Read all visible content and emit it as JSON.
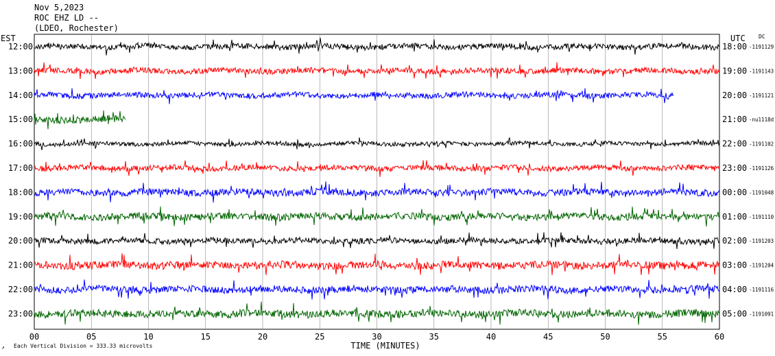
{
  "header": {
    "date": "Nov 5,2023",
    "station": "ROC EHZ LD --",
    "network": "(LDEO, Rochester)"
  },
  "left_axis_label": "EST",
  "right_axis_label": "UTC",
  "dc_label": "DC",
  "footer_note": "Each Vertical Division = 333.33 microvolts",
  "chart_data": {
    "type": "line",
    "subtype": "helicorder",
    "xlabel": "TIME (MINUTES)",
    "x_ticks": [
      "00",
      "05",
      "10",
      "15",
      "20",
      "25",
      "30",
      "35",
      "40",
      "45",
      "50",
      "55",
      "60"
    ],
    "xlim": [
      0,
      60
    ],
    "trace_colors": [
      "#000000",
      "#ff0000",
      "#0000ff",
      "#006400"
    ],
    "rows": [
      {
        "est": "12:00",
        "utc": "18:00",
        "dc": "-1191129",
        "color": "#000000",
        "end_min": 60,
        "amp": 0.8
      },
      {
        "est": "13:00",
        "utc": "19:00",
        "dc": "-1191143",
        "color": "#ff0000",
        "end_min": 60,
        "amp": 0.8
      },
      {
        "est": "14:00",
        "utc": "20:00",
        "dc": "-1191121",
        "color": "#0000ff",
        "end_min": 56,
        "amp": 0.8
      },
      {
        "est": "15:00",
        "utc": "21:00",
        "dc": "-nu1118d",
        "color": "#006400",
        "end_min": 8,
        "amp": 1.0
      },
      {
        "est": "16:00",
        "utc": "22:00",
        "dc": "-1191102",
        "color": "#000000",
        "end_min": 60,
        "amp": 0.6
      },
      {
        "est": "17:00",
        "utc": "23:00",
        "dc": "-1191126",
        "color": "#ff0000",
        "end_min": 60,
        "amp": 0.8
      },
      {
        "est": "18:00",
        "utc": "00:00",
        "dc": "-1191048",
        "color": "#0000ff",
        "end_min": 60,
        "amp": 1.0
      },
      {
        "est": "19:00",
        "utc": "01:00",
        "dc": "-1191110",
        "color": "#006400",
        "end_min": 60,
        "amp": 1.0
      },
      {
        "est": "20:00",
        "utc": "02:00",
        "dc": "-1191203",
        "color": "#000000",
        "end_min": 60,
        "amp": 0.8
      },
      {
        "est": "21:00",
        "utc": "03:00",
        "dc": "-1191204",
        "color": "#ff0000",
        "end_min": 60,
        "amp": 1.1
      },
      {
        "est": "22:00",
        "utc": "04:00",
        "dc": "-1191116",
        "color": "#0000ff",
        "end_min": 60,
        "amp": 1.0
      },
      {
        "est": "23:00",
        "utc": "05:00",
        "dc": "-1191091",
        "color": "#006400",
        "end_min": 60,
        "amp": 1.1
      }
    ]
  }
}
